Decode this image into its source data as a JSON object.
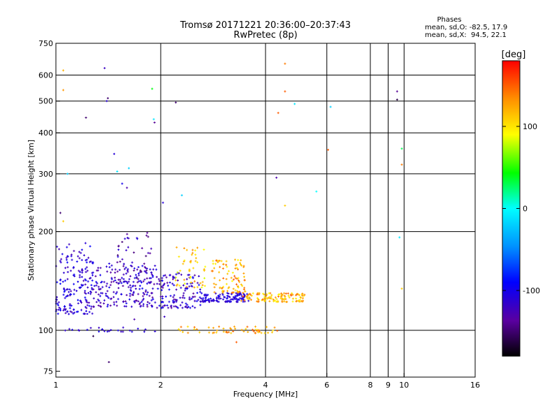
{
  "chart_data": {
    "type": "scatter",
    "title": "Tromsø 20171221 20:36:00–20:37:43",
    "subtitle": "RwPretec (8p)",
    "xlabel": "Frequency [MHz]",
    "ylabel": "Stationary phase Virtual Height [km]",
    "x_scale": "log",
    "y_scale": "log",
    "xlim": [
      1,
      16
    ],
    "ylim": [
      72,
      750
    ],
    "x_ticks": [
      1,
      2,
      4,
      6,
      8,
      9,
      10,
      16
    ],
    "x_tick_labels": [
      "1",
      "2",
      "4",
      "6",
      "8",
      "9",
      "10",
      "16"
    ],
    "y_ticks": [
      75,
      100,
      200,
      300,
      400,
      500,
      600,
      750
    ],
    "y_tick_labels": [
      "75",
      "100",
      "200",
      "300",
      "400",
      "500",
      "600",
      "750"
    ],
    "grid": true,
    "stats": {
      "header": "Phases",
      "line_o": "mean, sd,O: -82.5, 17.9",
      "line_x": "mean, sd,X:  94.5, 22.1"
    },
    "colorbar": {
      "label": "[deg]",
      "range": [
        -180,
        180
      ],
      "ticks": [
        100,
        0,
        -100
      ],
      "tick_labels": [
        "100",
        "0",
        "-100"
      ]
    },
    "clusters": [
      {
        "f": [
          1.0,
          1.28
        ],
        "h": [
          112,
          185
        ],
        "ph": [
          -130,
          -90
        ],
        "n": 180
      },
      {
        "f": [
          1.28,
          1.95
        ],
        "h": [
          118,
          160
        ],
        "ph": [
          -140,
          -95
        ],
        "n": 190
      },
      {
        "f": [
          1.5,
          1.9
        ],
        "h": [
          140,
          200
        ],
        "ph": [
          -150,
          -100
        ],
        "n": 60
      },
      {
        "f": [
          1.95,
          2.6
        ],
        "h": [
          117,
          150
        ],
        "ph": [
          -140,
          -90
        ],
        "n": 130
      },
      {
        "f": [
          2.2,
          2.7
        ],
        "h": [
          135,
          180
        ],
        "ph": [
          80,
          140
        ],
        "n": 50
      },
      {
        "f": [
          2.6,
          3.6
        ],
        "h": [
          122,
          130
        ],
        "ph": [
          -125,
          -95
        ],
        "n": 120
      },
      {
        "f": [
          2.8,
          3.5
        ],
        "h": [
          130,
          165
        ],
        "ph": [
          90,
          150
        ],
        "n": 90
      },
      {
        "f": [
          3.4,
          5.2
        ],
        "h": [
          122,
          130
        ],
        "ph": [
          90,
          150
        ],
        "n": 120
      },
      {
        "f": [
          1.05,
          1.95
        ],
        "h": [
          99,
          102
        ],
        "ph": [
          -120,
          -100
        ],
        "n": 25
      },
      {
        "f": [
          2.25,
          4.4
        ],
        "h": [
          98,
          103
        ],
        "ph": [
          100,
          150
        ],
        "n": 55
      }
    ],
    "points": [
      {
        "f": 1.05,
        "h": 620,
        "ph": 120
      },
      {
        "f": 1.05,
        "h": 540,
        "ph": 130
      },
      {
        "f": 1.05,
        "h": 215,
        "ph": 110
      },
      {
        "f": 1.03,
        "h": 228,
        "ph": -150
      },
      {
        "f": 1.08,
        "h": 300,
        "ph": -20
      },
      {
        "f": 1.28,
        "h": 96,
        "ph": -160
      },
      {
        "f": 1.38,
        "h": 630,
        "ph": -120
      },
      {
        "f": 1.41,
        "h": 510,
        "ph": -150
      },
      {
        "f": 1.4,
        "h": 500,
        "ph": -110
      },
      {
        "f": 1.22,
        "h": 445,
        "ph": -150
      },
      {
        "f": 1.47,
        "h": 345,
        "ph": -110
      },
      {
        "f": 1.5,
        "h": 305,
        "ph": -10
      },
      {
        "f": 1.55,
        "h": 280,
        "ph": -100
      },
      {
        "f": 1.6,
        "h": 272,
        "ph": -130
      },
      {
        "f": 1.62,
        "h": 312,
        "ph": -20
      },
      {
        "f": 1.89,
        "h": 545,
        "ph": 40
      },
      {
        "f": 1.91,
        "h": 440,
        "ph": -10
      },
      {
        "f": 1.92,
        "h": 430,
        "ph": -140
      },
      {
        "f": 2.21,
        "h": 495,
        "ph": -150
      },
      {
        "f": 2.03,
        "h": 245,
        "ph": -110
      },
      {
        "f": 2.3,
        "h": 258,
        "ph": -20
      },
      {
        "f": 4.35,
        "h": 460,
        "ph": 150
      },
      {
        "f": 4.55,
        "h": 535,
        "ph": 150
      },
      {
        "f": 4.55,
        "h": 650,
        "ph": 140
      },
      {
        "f": 4.85,
        "h": 490,
        "ph": -10
      },
      {
        "f": 4.3,
        "h": 292,
        "ph": -130
      },
      {
        "f": 4.55,
        "h": 240,
        "ph": 110
      },
      {
        "f": 5.6,
        "h": 265,
        "ph": 0
      },
      {
        "f": 6.15,
        "h": 480,
        "ph": -20
      },
      {
        "f": 6.05,
        "h": 355,
        "ph": 150
      },
      {
        "f": 9.55,
        "h": 535,
        "ph": -140
      },
      {
        "f": 9.55,
        "h": 505,
        "ph": -160
      },
      {
        "f": 9.85,
        "h": 358,
        "ph": 30
      },
      {
        "f": 9.85,
        "h": 320,
        "ph": 140
      },
      {
        "f": 9.7,
        "h": 192,
        "ph": -10
      },
      {
        "f": 9.85,
        "h": 134,
        "ph": 110
      },
      {
        "f": 1.42,
        "h": 80,
        "ph": -150
      },
      {
        "f": 3.3,
        "h": 92,
        "ph": 150
      },
      {
        "f": 2.05,
        "h": 110,
        "ph": -120
      },
      {
        "f": 1.68,
        "h": 108,
        "ph": -130
      }
    ]
  }
}
